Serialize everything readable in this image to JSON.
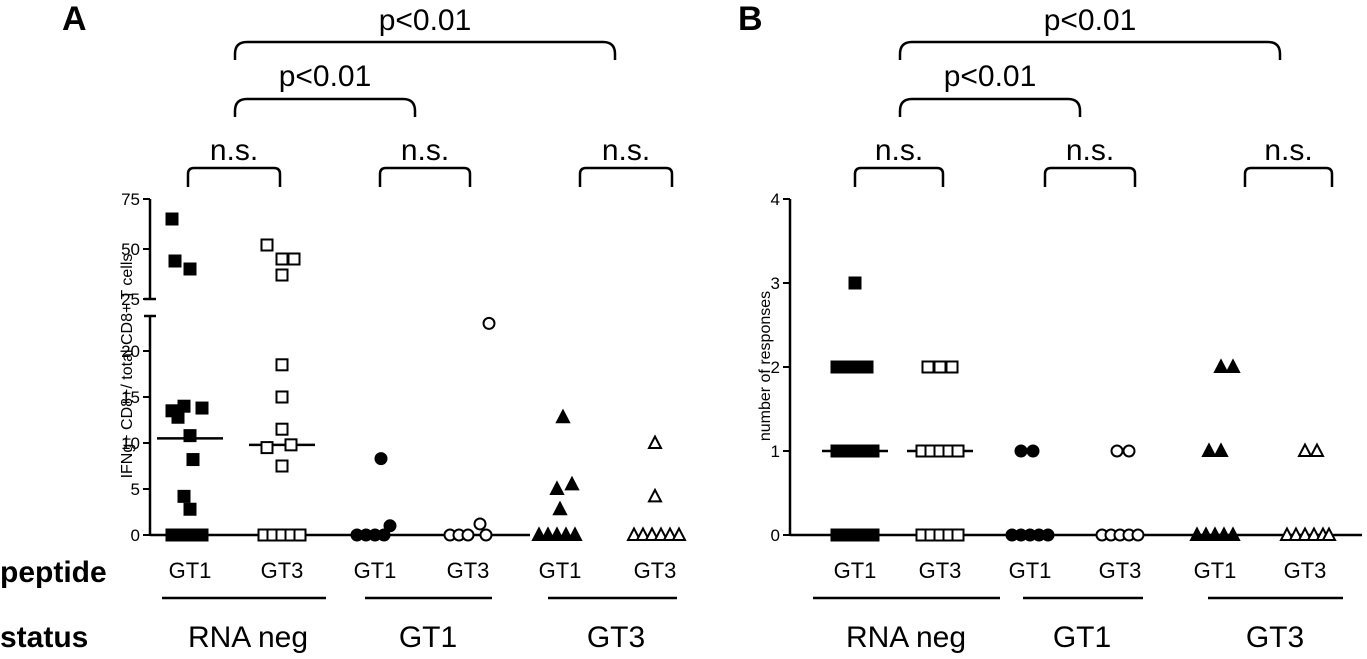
{
  "row_labels": {
    "peptide": "peptide",
    "status": "status"
  },
  "chart_data": [
    {
      "type": "scatter",
      "panel": "A",
      "ylabel": "IFNg+ CD8+/ total CD8+ T cells",
      "y_axis_break": {
        "lower_range": [
          0,
          23
        ],
        "upper_range": [
          25,
          75
        ]
      },
      "yticks_lower": [
        "0",
        "5",
        "10",
        "15",
        "20"
      ],
      "yticks_upper": [
        "25",
        "50",
        "75"
      ],
      "categories": [
        "GT1",
        "GT3",
        "GT1",
        "GT3",
        "GT1",
        "GT3"
      ],
      "status_groups": [
        "RNA neg",
        "GT1",
        "GT3"
      ],
      "groups": [
        {
          "peptide": "GT1",
          "status": "RNA neg",
          "marker": "square",
          "fill": "#000000",
          "median": 10.5,
          "points": [
            [
              -0.3,
              65
            ],
            [
              -0.25,
              44
            ],
            [
              0.0,
              40
            ],
            [
              -0.3,
              13.5
            ],
            [
              -0.1,
              14
            ],
            [
              0.2,
              13.8
            ],
            [
              -0.2,
              12.8
            ],
            [
              0.0,
              10.8
            ],
            [
              0.05,
              8.2
            ],
            [
              -0.1,
              4.2
            ],
            [
              0.0,
              2.8
            ],
            [
              -0.3,
              0
            ],
            [
              -0.15,
              0
            ],
            [
              0.0,
              0
            ],
            [
              0.1,
              0
            ],
            [
              0.2,
              0
            ]
          ]
        },
        {
          "peptide": "GT3",
          "status": "RNA neg",
          "marker": "square",
          "fill": "#ffffff",
          "median": 9.8,
          "points": [
            [
              -0.25,
              52
            ],
            [
              0.0,
              45
            ],
            [
              0.2,
              45
            ],
            [
              0.0,
              37
            ],
            [
              0.0,
              18.5
            ],
            [
              0.0,
              15
            ],
            [
              0.0,
              11.5
            ],
            [
              -0.25,
              9.5
            ],
            [
              0.15,
              9.8
            ],
            [
              0.0,
              7.5
            ],
            [
              -0.3,
              0
            ],
            [
              -0.15,
              0
            ],
            [
              0.0,
              0
            ],
            [
              0.15,
              0
            ],
            [
              0.3,
              0
            ]
          ]
        },
        {
          "peptide": "GT1",
          "status": "GT1",
          "marker": "circle",
          "fill": "#000000",
          "median": 0,
          "points": [
            [
              -0.3,
              0
            ],
            [
              -0.15,
              0
            ],
            [
              0.0,
              0
            ],
            [
              0.1,
              8.3
            ],
            [
              0.25,
              1
            ],
            [
              0.15,
              0
            ]
          ]
        },
        {
          "peptide": "GT3",
          "status": "GT1",
          "marker": "circle",
          "fill": "#ffffff",
          "median": 0,
          "points": [
            [
              -0.3,
              0
            ],
            [
              -0.15,
              0
            ],
            [
              0.0,
              0
            ],
            [
              0.2,
              1.2
            ],
            [
              0.35,
              23
            ],
            [
              0.3,
              0
            ]
          ]
        },
        {
          "peptide": "GT1",
          "status": "GT3",
          "marker": "triangle",
          "fill": "#000000",
          "median": 0,
          "points": [
            [
              0.05,
              12.8
            ],
            [
              -0.05,
              5
            ],
            [
              0.2,
              5.5
            ],
            [
              0.0,
              2.8
            ],
            [
              -0.35,
              0
            ],
            [
              -0.2,
              0
            ],
            [
              -0.05,
              0
            ],
            [
              0.1,
              0
            ],
            [
              0.25,
              0
            ]
          ]
        },
        {
          "peptide": "GT3",
          "status": "GT3",
          "marker": "triangle",
          "fill": "#ffffff",
          "median": 0,
          "points": [
            [
              0.0,
              10
            ],
            [
              0.0,
              4.2
            ],
            [
              -0.35,
              0
            ],
            [
              -0.2,
              0
            ],
            [
              -0.05,
              0
            ],
            [
              0.1,
              0
            ],
            [
              0.25,
              0
            ],
            [
              0.4,
              0
            ]
          ]
        }
      ],
      "annotations": {
        "ns": [
          "n.s.",
          "n.s.",
          "n.s."
        ],
        "p_inner": "p<0.01",
        "p_outer": "p<0.01"
      }
    },
    {
      "type": "scatter",
      "panel": "B",
      "ylabel": "number of responses",
      "ylim": [
        0,
        4
      ],
      "yticks": [
        "0",
        "1",
        "2",
        "3",
        "4"
      ],
      "categories": [
        "GT1",
        "GT3",
        "GT1",
        "GT3",
        "GT1",
        "GT3"
      ],
      "status_groups": [
        "RNA neg",
        "GT1",
        "GT3"
      ],
      "groups": [
        {
          "peptide": "GT1",
          "status": "RNA neg",
          "marker": "square",
          "fill": "#000000",
          "median": 1,
          "points": [
            [
              0.0,
              3
            ],
            [
              -0.3,
              2
            ],
            [
              -0.1,
              2
            ],
            [
              0.05,
              2
            ],
            [
              0.2,
              2
            ],
            [
              -0.3,
              1
            ],
            [
              -0.15,
              1
            ],
            [
              0.0,
              1
            ],
            [
              0.15,
              1
            ],
            [
              0.3,
              1
            ],
            [
              -0.3,
              0
            ],
            [
              -0.15,
              0
            ],
            [
              0.0,
              0
            ],
            [
              0.15,
              0
            ],
            [
              0.3,
              0
            ]
          ]
        },
        {
          "peptide": "GT3",
          "status": "RNA neg",
          "marker": "square",
          "fill": "#ffffff",
          "median": 1,
          "points": [
            [
              -0.2,
              2
            ],
            [
              0.0,
              2
            ],
            [
              0.2,
              2
            ],
            [
              -0.3,
              1
            ],
            [
              -0.15,
              1
            ],
            [
              0.0,
              1
            ],
            [
              0.15,
              1
            ],
            [
              0.3,
              1
            ],
            [
              -0.3,
              0
            ],
            [
              -0.15,
              0
            ],
            [
              0.0,
              0
            ],
            [
              0.15,
              0
            ],
            [
              0.3,
              0
            ]
          ]
        },
        {
          "peptide": "GT1",
          "status": "GT1",
          "marker": "circle",
          "fill": "#000000",
          "median": 0,
          "points": [
            [
              -0.15,
              1
            ],
            [
              0.05,
              1
            ],
            [
              -0.3,
              0
            ],
            [
              -0.15,
              0
            ],
            [
              0.0,
              0
            ],
            [
              0.15,
              0
            ],
            [
              0.3,
              0
            ]
          ]
        },
        {
          "peptide": "GT3",
          "status": "GT1",
          "marker": "circle",
          "fill": "#ffffff",
          "median": 0,
          "points": [
            [
              -0.05,
              1
            ],
            [
              0.15,
              1
            ],
            [
              -0.3,
              0
            ],
            [
              -0.15,
              0
            ],
            [
              0.0,
              0
            ],
            [
              0.15,
              0
            ],
            [
              0.3,
              0
            ]
          ]
        },
        {
          "peptide": "GT1",
          "status": "GT3",
          "marker": "triangle",
          "fill": "#000000",
          "median": 0,
          "points": [
            [
              0.1,
              2
            ],
            [
              0.3,
              2
            ],
            [
              -0.1,
              1
            ],
            [
              0.1,
              1
            ],
            [
              -0.3,
              0
            ],
            [
              -0.15,
              0
            ],
            [
              0.0,
              0
            ],
            [
              0.15,
              0
            ],
            [
              0.3,
              0
            ]
          ]
        },
        {
          "peptide": "GT3",
          "status": "GT3",
          "marker": "triangle",
          "fill": "#ffffff",
          "median": 0,
          "points": [
            [
              0.0,
              1
            ],
            [
              0.2,
              1
            ],
            [
              -0.3,
              0
            ],
            [
              -0.15,
              0
            ],
            [
              0.0,
              0
            ],
            [
              0.15,
              0
            ],
            [
              0.3,
              0
            ],
            [
              0.4,
              0
            ]
          ]
        }
      ],
      "annotations": {
        "ns": [
          "n.s.",
          "n.s.",
          "n.s."
        ],
        "p_inner": "p<0.01",
        "p_outer": "p<0.01"
      }
    }
  ]
}
